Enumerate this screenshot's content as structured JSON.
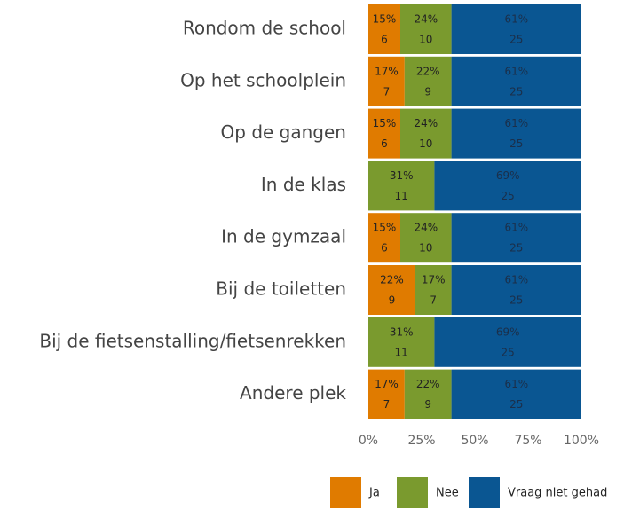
{
  "chart_data": {
    "type": "bar",
    "orientation": "horizontal",
    "stacked": true,
    "categories": [
      "Rondom de school",
      "Op het schoolplein",
      "Op de gangen",
      "In de klas",
      "In de gymzaal",
      "Bij de toiletten",
      "Bij de fietsenstalling/fietsenrekken",
      "Andere plek"
    ],
    "series": [
      {
        "name": "Ja",
        "color": "#e07b00",
        "values": [
          15,
          17,
          15,
          null,
          15,
          22,
          null,
          17
        ],
        "value_labels": [
          "15%",
          "17%",
          "15%",
          null,
          "15%",
          "22%",
          null,
          "17%"
        ],
        "counts": [
          6,
          7,
          6,
          null,
          6,
          9,
          null,
          7
        ]
      },
      {
        "name": "Nee",
        "color": "#7a9a2e",
        "values": [
          24,
          22,
          24,
          31,
          24,
          17,
          31,
          22
        ],
        "value_labels": [
          "24%",
          "22%",
          "24%",
          "31%",
          "24%",
          "17%",
          "31%",
          "22%"
        ],
        "counts": [
          10,
          9,
          10,
          11,
          10,
          7,
          11,
          9
        ]
      },
      {
        "name": "Vraag niet gehad",
        "color": "#0a5692",
        "values": [
          61,
          61,
          61,
          69,
          61,
          61,
          69,
          61
        ],
        "value_labels": [
          "61%",
          "61%",
          "61%",
          "69%",
          "61%",
          "61%",
          "69%",
          "61%"
        ],
        "counts": [
          25,
          25,
          25,
          25,
          25,
          25,
          25,
          25
        ]
      }
    ],
    "xlim": [
      0,
      100
    ],
    "xticks": [
      {
        "value": 0,
        "label": "0%"
      },
      {
        "value": 25,
        "label": "25%"
      },
      {
        "value": 50,
        "label": "50%"
      },
      {
        "value": 75,
        "label": "75%"
      },
      {
        "value": 100,
        "label": "100%"
      }
    ],
    "legend": "bottom-right"
  }
}
